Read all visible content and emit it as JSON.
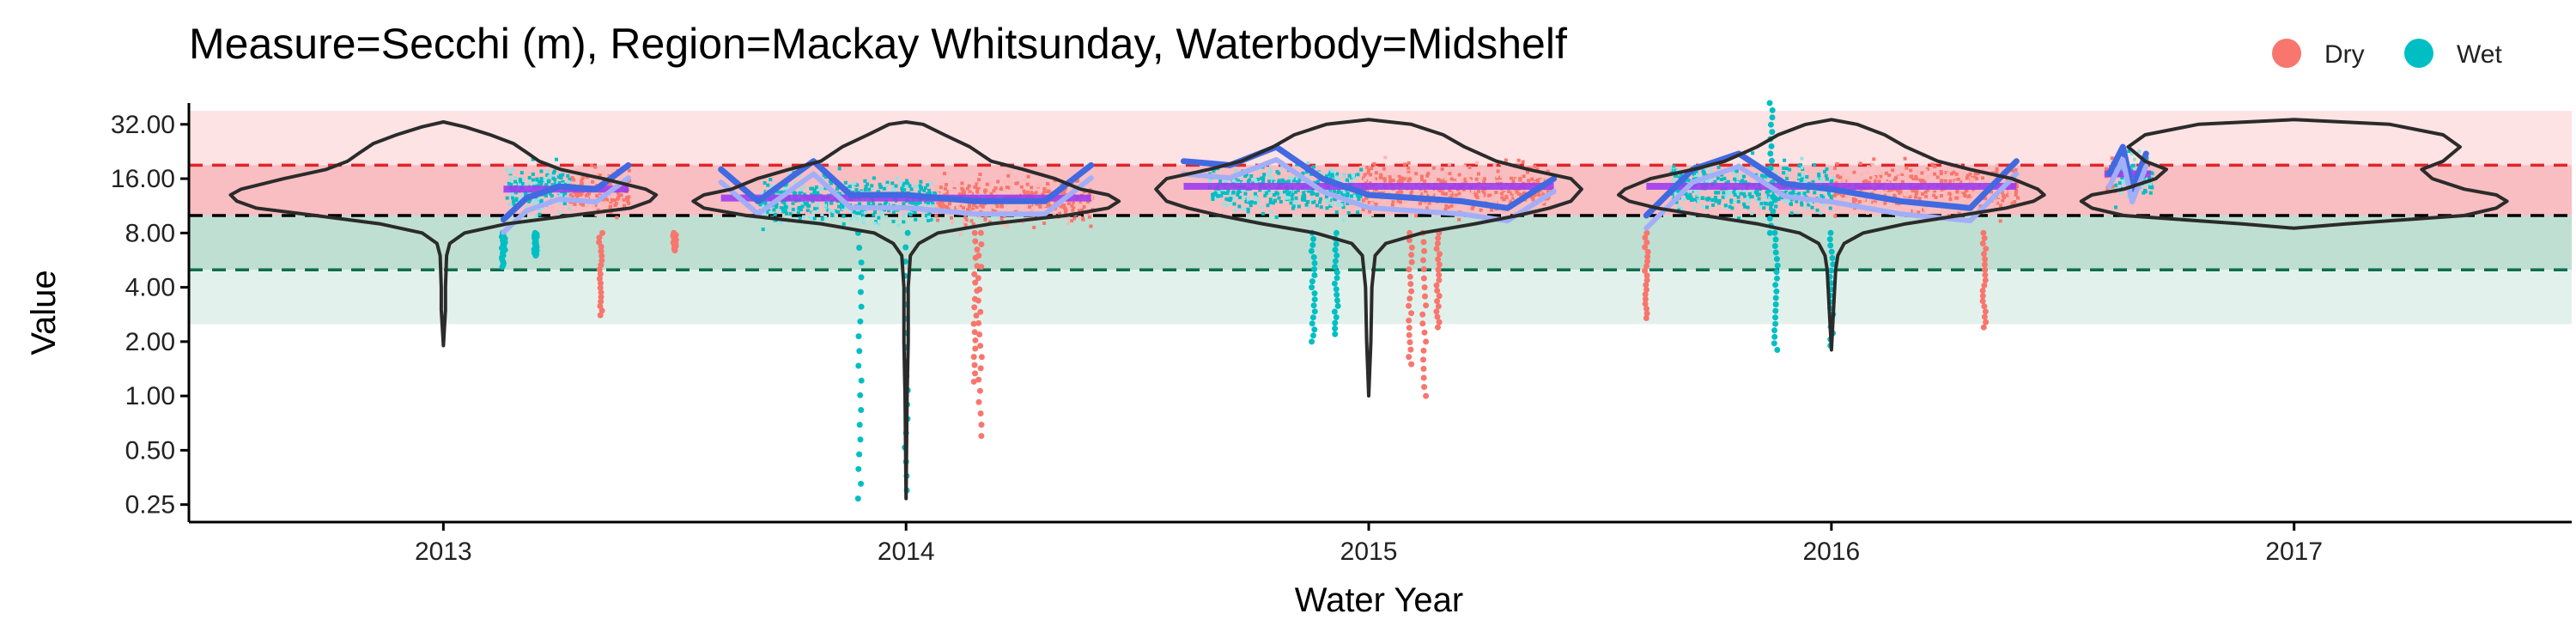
{
  "chart_data": {
    "type": "scatter",
    "title": "Measure=Secchi (m), Region=Mackay Whitsunday, Waterbody=Midshelf",
    "xlabel": "Water Year",
    "ylabel": "Value",
    "y_scale": "log2",
    "ylim": [
      0.2,
      42
    ],
    "xlim": [
      2012.45,
      2017.6
    ],
    "x_ticks": [
      2013,
      2014,
      2015,
      2016,
      2017
    ],
    "x_tick_labels": [
      "2013",
      "2014",
      "2015",
      "2016",
      "2017"
    ],
    "y_ticks": [
      0.25,
      0.5,
      1,
      2,
      4,
      8,
      16,
      32
    ],
    "y_tick_labels": [
      "0.25",
      "0.50",
      "1.00",
      "2.00",
      "4.00",
      "8.00",
      "16.00",
      "32.00"
    ],
    "legend": {
      "placement": "top-right",
      "entries": [
        {
          "label": "Dry",
          "color": "#F8766D"
        },
        {
          "label": "Wet",
          "color": "#00BFC4"
        }
      ]
    },
    "guidelines": [
      {
        "value": 19,
        "color": "#E0252A",
        "style": "dashed"
      },
      {
        "value": 10,
        "color": "#000000",
        "style": "dashed"
      },
      {
        "value": 5,
        "color": "#0B6E4F",
        "style": "dashed"
      }
    ],
    "bands": [
      {
        "from": 19,
        "to": 38,
        "color": "#FDE3E4"
      },
      {
        "from": 10,
        "to": 19,
        "color": "#F8BEC2"
      },
      {
        "from": 5,
        "to": 10,
        "color": "#BFDFD2"
      },
      {
        "from": 2.5,
        "to": 5,
        "color": "#E3F1EC"
      }
    ],
    "colors": {
      "dry": "#F8766D",
      "wet": "#00BFC4",
      "light_red": "#FAB9B5",
      "light_teal": "#96E1E4",
      "trend": "#4169E1",
      "trend_light": "#A3AEF8",
      "median": "#9C3DF0",
      "median_light": "#CCA3F6",
      "violin": "#2B2B2B"
    },
    "years": [
      {
        "year": 2013,
        "data_range": [
          2013.13,
          2013.4
        ],
        "wet_range": [
          2013.13,
          2013.27
        ],
        "dry_range": [
          2013.27,
          2013.4
        ],
        "median": 14,
        "trend": [
          [
            2013.13,
            9.5
          ],
          [
            2013.18,
            12.5
          ],
          [
            2013.25,
            14.5
          ],
          [
            2013.33,
            14
          ],
          [
            2013.4,
            19
          ]
        ],
        "outliers": [
          [
            2013.34,
            2.8
          ],
          [
            2013.13,
            5.2
          ],
          [
            2013.2,
            6.0
          ]
        ],
        "violin": {
          "center": 2013,
          "profile": [
            [
              1.9,
              0
            ],
            [
              3,
              0.01
            ],
            [
              4,
              0.01
            ],
            [
              6,
              0.015
            ],
            [
              7,
              0.03
            ],
            [
              8,
              0.1
            ],
            [
              9,
              0.3
            ],
            [
              10,
              0.6
            ],
            [
              11,
              0.88
            ],
            [
              12,
              0.97
            ],
            [
              13,
              1.0
            ],
            [
              14,
              0.95
            ],
            [
              16,
              0.75
            ],
            [
              18,
              0.55
            ],
            [
              20,
              0.45
            ],
            [
              22,
              0.4
            ],
            [
              25,
              0.33
            ],
            [
              28,
              0.22
            ],
            [
              31,
              0.1
            ],
            [
              33,
              0
            ]
          ]
        }
      },
      {
        "year": 2014,
        "data_range": [
          2013.6,
          2014.4
        ],
        "wet_range": [
          2013.68,
          2014.06
        ],
        "dry_range": [
          2014.06,
          2014.4
        ],
        "median": 12.5,
        "trend": [
          [
            2013.6,
            18
          ],
          [
            2013.68,
            12
          ],
          [
            2013.8,
            20
          ],
          [
            2013.88,
            13
          ],
          [
            2014.0,
            13
          ],
          [
            2014.15,
            12
          ],
          [
            2014.3,
            12
          ],
          [
            2014.4,
            19
          ]
        ],
        "outliers": [
          [
            2013.9,
            0.27
          ],
          [
            2014.0,
            0.3
          ],
          [
            2014.16,
            0.6
          ],
          [
            2014.15,
            1.2
          ],
          [
            2013.5,
            6.4
          ]
        ],
        "violin": {
          "center": 2014,
          "profile": [
            [
              0.27,
              0
            ],
            [
              1,
              0.005
            ],
            [
              2,
              0.01
            ],
            [
              4,
              0.01
            ],
            [
              6,
              0.02
            ],
            [
              7,
              0.06
            ],
            [
              8,
              0.15
            ],
            [
              9,
              0.4
            ],
            [
              10,
              0.75
            ],
            [
              11,
              0.95
            ],
            [
              12,
              1.0
            ],
            [
              13,
              0.95
            ],
            [
              14,
              0.82
            ],
            [
              16,
              0.7
            ],
            [
              18,
              0.55
            ],
            [
              20,
              0.4
            ],
            [
              24,
              0.3
            ],
            [
              28,
              0.18
            ],
            [
              32,
              0.08
            ],
            [
              33,
              0
            ]
          ]
        }
      },
      {
        "year": 2015,
        "data_range": [
          2014.6,
          2015.4
        ],
        "wet_range": [
          2014.65,
          2014.98
        ],
        "dry_range": [
          2014.98,
          2015.4
        ],
        "median": 14.5,
        "trend": [
          [
            2014.6,
            20
          ],
          [
            2014.7,
            19
          ],
          [
            2014.8,
            24
          ],
          [
            2014.9,
            16
          ],
          [
            2015.0,
            13
          ],
          [
            2015.2,
            12
          ],
          [
            2015.3,
            11
          ],
          [
            2015.4,
            16
          ]
        ],
        "outliers": [
          [
            2014.88,
            2.0
          ],
          [
            2014.93,
            2.2
          ],
          [
            2015.12,
            1.0
          ],
          [
            2015.09,
            1.5
          ],
          [
            2015.15,
            2.4
          ]
        ],
        "violin": {
          "center": 2015,
          "profile": [
            [
              1,
              0
            ],
            [
              2,
              0.01
            ],
            [
              4,
              0.015
            ],
            [
              6,
              0.03
            ],
            [
              7,
              0.08
            ],
            [
              8,
              0.25
            ],
            [
              9,
              0.5
            ],
            [
              10,
              0.7
            ],
            [
              11,
              0.85
            ],
            [
              12,
              0.95
            ],
            [
              14,
              1.0
            ],
            [
              16,
              0.95
            ],
            [
              18,
              0.75
            ],
            [
              20,
              0.6
            ],
            [
              24,
              0.45
            ],
            [
              28,
              0.35
            ],
            [
              32,
              0.2
            ],
            [
              34,
              0
            ]
          ]
        }
      },
      {
        "year": 2016,
        "data_range": [
          2015.6,
          2016.4
        ],
        "wet_range": [
          2015.65,
          2016.0
        ],
        "dry_range": [
          2016.0,
          2016.4
        ],
        "median": 14.5,
        "trend": [
          [
            2015.6,
            10
          ],
          [
            2015.7,
            18
          ],
          [
            2015.8,
            22
          ],
          [
            2015.9,
            15
          ],
          [
            2016.0,
            14
          ],
          [
            2016.15,
            12
          ],
          [
            2016.3,
            11
          ],
          [
            2016.4,
            20
          ]
        ],
        "outliers": [
          [
            2015.88,
            1.8
          ],
          [
            2016.0,
            1.9
          ],
          [
            2016.33,
            2.4
          ],
          [
            2015.6,
            2.7
          ],
          [
            2015.87,
            42
          ]
        ],
        "violin": {
          "center": 2016,
          "profile": [
            [
              1.8,
              0
            ],
            [
              3,
              0.01
            ],
            [
              5,
              0.02
            ],
            [
              6,
              0.03
            ],
            [
              7,
              0.06
            ],
            [
              8,
              0.15
            ],
            [
              9,
              0.35
            ],
            [
              10,
              0.6
            ],
            [
              11,
              0.82
            ],
            [
              12,
              0.95
            ],
            [
              13,
              1.0
            ],
            [
              14,
              0.97
            ],
            [
              16,
              0.85
            ],
            [
              18,
              0.65
            ],
            [
              20,
              0.5
            ],
            [
              24,
              0.35
            ],
            [
              28,
              0.25
            ],
            [
              32,
              0.12
            ],
            [
              34,
              0
            ]
          ]
        }
      },
      {
        "year": 2017,
        "data_range": [
          2016.59,
          2016.69
        ],
        "wet_range": [
          2016.61,
          2016.69
        ],
        "dry_range": [
          2016.59,
          2016.61
        ],
        "median": 17,
        "trend": [
          [
            2016.6,
            17
          ],
          [
            2016.63,
            24
          ],
          [
            2016.65,
            14
          ],
          [
            2016.68,
            22
          ]
        ],
        "outliers": [],
        "violin": {
          "center": 2017,
          "profile": [
            [
              8.5,
              0
            ],
            [
              9,
              0.25
            ],
            [
              10,
              0.8
            ],
            [
              11,
              0.95
            ],
            [
              12,
              1.0
            ],
            [
              13,
              0.95
            ],
            [
              14,
              0.8
            ],
            [
              16,
              0.65
            ],
            [
              18,
              0.6
            ],
            [
              20,
              0.7
            ],
            [
              24,
              0.78
            ],
            [
              28,
              0.7
            ],
            [
              32,
              0.45
            ],
            [
              34,
              0
            ]
          ]
        }
      }
    ]
  }
}
